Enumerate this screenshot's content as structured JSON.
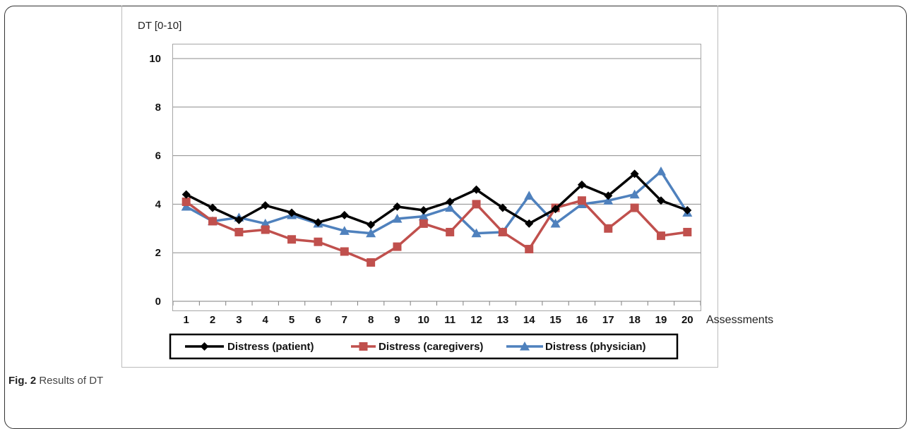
{
  "chart_data": {
    "type": "line",
    "y_axis_title": "DT [0-10]",
    "x_axis_title": "Assessments",
    "x": [
      "1",
      "2",
      "3",
      "4",
      "5",
      "6",
      "7",
      "8",
      "9",
      "10",
      "11",
      "12",
      "13",
      "14",
      "15",
      "16",
      "17",
      "18",
      "19",
      "20"
    ],
    "ylim": [
      0,
      10
    ],
    "yticks": [
      0,
      2,
      4,
      6,
      8,
      10
    ],
    "grid": true,
    "legend_position": "bottom",
    "series": [
      {
        "name": "Distress (patient)",
        "color": "#000000",
        "marker": "diamond",
        "values": [
          4.4,
          3.85,
          3.35,
          3.95,
          3.65,
          3.25,
          3.55,
          3.15,
          3.9,
          3.75,
          4.1,
          4.6,
          3.85,
          3.2,
          3.8,
          4.8,
          4.35,
          5.25,
          4.15,
          3.75
        ]
      },
      {
        "name": "Distress (caregivers)",
        "color": "#c0504d",
        "marker": "square",
        "values": [
          4.1,
          3.3,
          2.85,
          2.95,
          2.55,
          2.45,
          2.05,
          1.6,
          2.25,
          3.2,
          2.85,
          4.0,
          2.85,
          2.15,
          3.85,
          4.15,
          3.0,
          3.85,
          2.7,
          2.85
        ]
      },
      {
        "name": "Distress (physician)",
        "color": "#4f81bd",
        "marker": "triangle",
        "values": [
          3.9,
          3.3,
          3.45,
          3.2,
          3.55,
          3.2,
          2.9,
          2.8,
          3.4,
          3.5,
          3.85,
          2.8,
          2.85,
          4.35,
          3.2,
          4.0,
          4.15,
          4.4,
          5.35,
          3.65
        ]
      }
    ]
  },
  "caption": {
    "label": "Fig. 2",
    "text": "Results of DT"
  }
}
